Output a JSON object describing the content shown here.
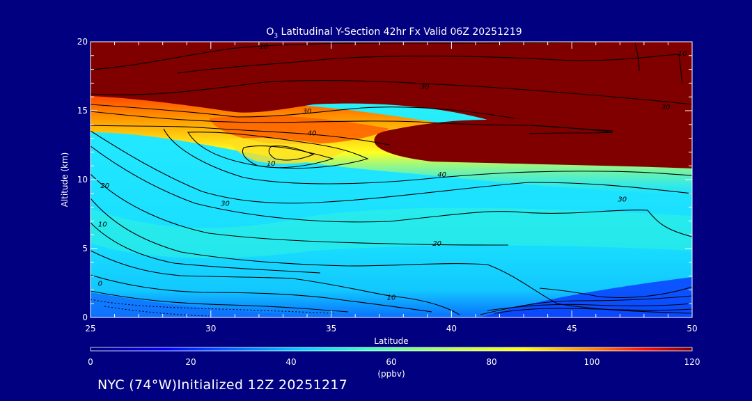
{
  "chart_data": {
    "type": "heatmap",
    "title_prefix": "O",
    "title_subscript": "3",
    "title_rest": " Latitudinal Y-Section 42hr  Fx Valid 06Z 20251219",
    "xlabel": "Latitude",
    "ylabel": "Altitude (km)",
    "xlim": [
      25,
      50
    ],
    "ylim": [
      0,
      20
    ],
    "x_ticks": [
      25,
      30,
      35,
      40,
      45,
      50
    ],
    "y_ticks": [
      0,
      5,
      10,
      15,
      20
    ],
    "colorbar": {
      "min": 0,
      "max": 120,
      "ticks": [
        0,
        20,
        40,
        60,
        80,
        100,
        120
      ],
      "unit_label": "(ppbv)"
    },
    "colors": {
      "background": "#000080",
      "stratosphere": "#800000"
    },
    "contour_labels": [
      {
        "text": "10",
        "lat": 32.5,
        "alt": 11.2
      },
      {
        "text": "20",
        "lat": 25.6,
        "alt": 9.6
      },
      {
        "text": "30",
        "lat": 30.6,
        "alt": 8.3
      },
      {
        "text": "10",
        "lat": 25.5,
        "alt": 6.8
      },
      {
        "text": "0",
        "lat": 25.4,
        "alt": 2.5
      },
      {
        "text": "10",
        "lat": 37.5,
        "alt": 1.5
      },
      {
        "text": "20",
        "lat": 39.4,
        "alt": 5.4
      },
      {
        "text": "30",
        "lat": 47.1,
        "alt": 8.6
      },
      {
        "text": "40",
        "lat": 34.2,
        "alt": 13.4
      },
      {
        "text": "40",
        "lat": 39.6,
        "alt": 10.4
      },
      {
        "text": "30",
        "lat": 34.0,
        "alt": 15.0
      },
      {
        "text": "30",
        "lat": 38.9,
        "alt": 16.8
      },
      {
        "text": "10",
        "lat": 32.2,
        "alt": 19.7
      },
      {
        "text": "30",
        "lat": 48.9,
        "alt": 15.3
      },
      {
        "text": "10",
        "lat": 49.6,
        "alt": 19.2
      }
    ]
  },
  "footer": "NYC (74°W)Initialized 12Z 20251217"
}
